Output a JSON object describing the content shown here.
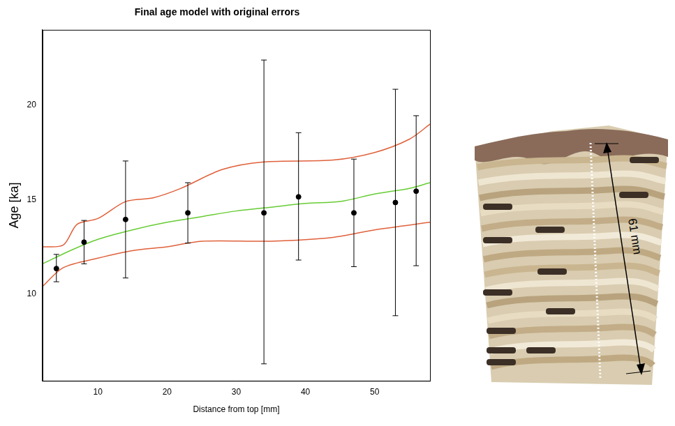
{
  "chart_data": {
    "type": "scatter",
    "title": "Final age model with original errors",
    "x_label": "Distance from top [mm]",
    "y_label": "Age [ka]",
    "xlim": [
      2,
      58
    ],
    "xticks": [
      10,
      20,
      30,
      40,
      50
    ],
    "ylim": [
      5.4,
      24
    ],
    "yticks": [
      10,
      15,
      20
    ],
    "grid": false,
    "series": [
      {
        "type": "scatter",
        "color": "#000000",
        "marker": "circle",
        "x": [
          4,
          8,
          14,
          23,
          34,
          39,
          47,
          53,
          56
        ],
        "values": [
          11.35,
          12.75,
          13.95,
          14.3,
          14.3,
          15.15,
          14.3,
          14.85,
          15.45
        ],
        "error_low": [
          10.65,
          11.6,
          10.85,
          12.7,
          6.3,
          11.8,
          11.45,
          8.85,
          11.5
        ],
        "error_high": [
          12.1,
          13.9,
          17.05,
          15.9,
          22.4,
          18.55,
          17.15,
          20.85,
          19.45
        ]
      },
      {
        "type": "line",
        "color": "#66cc33",
        "line_style": "solid",
        "x": [
          2,
          6,
          10,
          15,
          20,
          25,
          30,
          35,
          40,
          45,
          50,
          55,
          58
        ],
        "values": [
          11.6,
          12.3,
          12.9,
          13.4,
          13.8,
          14.1,
          14.4,
          14.6,
          14.8,
          14.9,
          15.3,
          15.6,
          15.9
        ]
      },
      {
        "type": "line",
        "color": "#e0603a",
        "line_style": "solid",
        "x": [
          2,
          5,
          7,
          10,
          14,
          18,
          22,
          28,
          34,
          44,
          50,
          55,
          58
        ],
        "values": [
          12.5,
          12.6,
          13.7,
          14.0,
          14.9,
          15.1,
          15.6,
          16.6,
          17.0,
          17.1,
          17.5,
          18.2,
          19.0
        ]
      },
      {
        "type": "line",
        "color": "#e0603a",
        "line_style": "solid",
        "x": [
          2,
          5,
          10,
          15,
          20,
          25,
          35,
          44,
          50,
          58
        ],
        "values": [
          10.4,
          11.4,
          11.9,
          12.3,
          12.5,
          12.8,
          12.8,
          13.0,
          13.4,
          13.8
        ]
      }
    ]
  },
  "image": {
    "annotation": "61 mm"
  }
}
